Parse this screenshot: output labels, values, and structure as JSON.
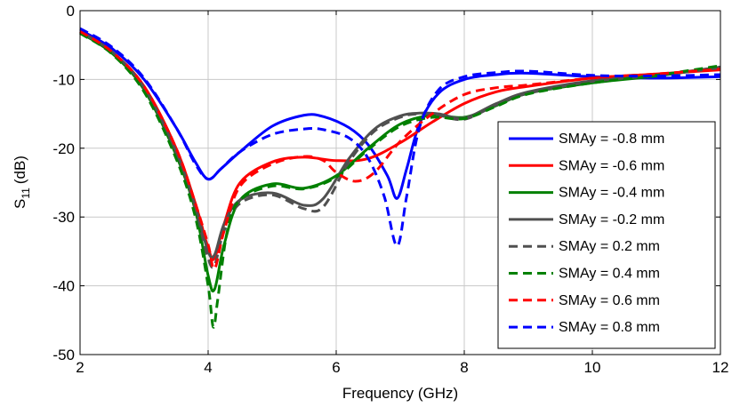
{
  "chart_data": {
    "type": "line",
    "title": "",
    "xlabel": "Frequency (GHz)",
    "ylabel_main": "S",
    "ylabel_sub": "11",
    "ylabel_unit": "(dB)",
    "xlim": [
      2,
      12
    ],
    "ylim": [
      -50,
      0
    ],
    "xticks": [
      2,
      4,
      6,
      8,
      10,
      12
    ],
    "yticks": [
      0,
      -10,
      -20,
      -30,
      -40,
      -50
    ],
    "grid": true,
    "legend_position": "right",
    "series": [
      {
        "name": "SMAy = -0.8 mm",
        "color": "#0000ff",
        "dash": "solid",
        "x": [
          2,
          2.5,
          3,
          3.5,
          3.8,
          4,
          4.2,
          4.5,
          5,
          5.5,
          5.8,
          6.2,
          6.5,
          6.8,
          6.95,
          7.1,
          7.3,
          7.6,
          8,
          8.5,
          9,
          10,
          11,
          12
        ],
        "y": [
          -2.8,
          -5.5,
          -10,
          -17,
          -22,
          -24.5,
          -23,
          -20.5,
          -16.8,
          -15.2,
          -15.4,
          -17,
          -19.5,
          -24,
          -27.3,
          -23,
          -16.5,
          -12,
          -10,
          -9.3,
          -9.1,
          -9.6,
          -9.8,
          -9.6
        ]
      },
      {
        "name": "SMAy = -0.6 mm",
        "color": "#ff0000",
        "dash": "solid",
        "x": [
          2,
          2.5,
          3,
          3.5,
          3.8,
          4,
          4.1,
          4.25,
          4.5,
          5,
          5.5,
          6,
          6.5,
          7,
          7.5,
          8,
          8.5,
          9,
          10,
          11,
          12
        ],
        "y": [
          -3,
          -6,
          -11,
          -20,
          -28,
          -34.5,
          -36,
          -31,
          -25,
          -22,
          -21.3,
          -21.8,
          -21.5,
          -19.2,
          -16.2,
          -13.5,
          -11.8,
          -11,
          -9.8,
          -9.2,
          -8.6
        ]
      },
      {
        "name": "SMAy = -0.4 mm",
        "color": "#008000",
        "dash": "solid",
        "x": [
          2,
          2.5,
          3,
          3.5,
          3.8,
          4,
          4.1,
          4.25,
          4.5,
          5,
          5.5,
          6,
          6.5,
          7,
          7.5,
          8,
          8.5,
          9,
          10,
          11,
          12
        ],
        "y": [
          -3.2,
          -6.2,
          -11.5,
          -21,
          -29,
          -38.5,
          -40.5,
          -34,
          -27.5,
          -25.2,
          -25.8,
          -24,
          -20,
          -16.5,
          -15.2,
          -15.5,
          -13.8,
          -12,
          -10.5,
          -9.5,
          -8.2
        ]
      },
      {
        "name": "SMAy = -0.2 mm",
        "color": "#505050",
        "dash": "solid",
        "x": [
          2,
          2.5,
          3,
          3.5,
          3.8,
          4,
          4.1,
          4.25,
          4.5,
          5,
          5.5,
          5.8,
          6.2,
          6.6,
          7,
          7.3,
          7.6,
          8,
          8.5,
          9,
          10,
          11,
          12
        ],
        "y": [
          -3.1,
          -6,
          -11.2,
          -20.5,
          -28.5,
          -35,
          -35.5,
          -31,
          -27.5,
          -26.5,
          -28.3,
          -27.3,
          -21.5,
          -17.2,
          -15.3,
          -14.9,
          -15,
          -15.6,
          -13.5,
          -11.8,
          -10.2,
          -9.4,
          -8.3
        ]
      },
      {
        "name": "SMAy = 0.2 mm",
        "color": "#505050",
        "dash": "dashed",
        "x": [
          2,
          2.5,
          3,
          3.5,
          3.8,
          4,
          4.1,
          4.25,
          4.5,
          5,
          5.5,
          5.8,
          6.2,
          6.6,
          7,
          7.3,
          7.6,
          8,
          8.5,
          9,
          10,
          11,
          12
        ],
        "y": [
          -3.1,
          -6,
          -11.3,
          -20.8,
          -29,
          -36,
          -37,
          -32,
          -28,
          -26.8,
          -28.8,
          -28.5,
          -22,
          -17.5,
          -15.5,
          -15,
          -15.2,
          -15.8,
          -13.7,
          -12,
          -10.3,
          -9.4,
          -8.2
        ]
      },
      {
        "name": "SMAy = 0.4 mm",
        "color": "#008000",
        "dash": "dashed",
        "x": [
          2,
          2.5,
          3,
          3.5,
          3.8,
          4,
          4.08,
          4.15,
          4.3,
          4.5,
          5,
          5.5,
          6,
          6.5,
          7,
          7.5,
          8,
          8.5,
          9,
          10,
          11,
          12
        ],
        "y": [
          -3.3,
          -6.3,
          -11.8,
          -21.5,
          -30,
          -40,
          -46,
          -42,
          -32,
          -27.5,
          -25.5,
          -25.9,
          -24.2,
          -20.2,
          -16.8,
          -15.5,
          -15.7,
          -13.9,
          -12.1,
          -10.5,
          -9.4,
          -8
        ]
      },
      {
        "name": "SMAy = 0.6 mm",
        "color": "#ff0000",
        "dash": "dashed",
        "x": [
          2,
          2.5,
          3,
          3.5,
          3.8,
          4,
          4.1,
          4.25,
          4.5,
          5,
          5.5,
          5.8,
          6,
          6.3,
          6.6,
          7,
          7.5,
          8,
          8.5,
          9,
          10,
          11,
          12
        ],
        "y": [
          -3,
          -6,
          -11,
          -20,
          -28,
          -34,
          -37.5,
          -32,
          -25.5,
          -22.3,
          -21.2,
          -21.8,
          -23.5,
          -24.8,
          -23.5,
          -19,
          -15,
          -12.2,
          -11.2,
          -10.8,
          -9.8,
          -9.2,
          -8.5
        ]
      },
      {
        "name": "SMAy = 0.8 mm",
        "color": "#0000ff",
        "dash": "dashed",
        "x": [
          2,
          2.5,
          3,
          3.5,
          3.8,
          4,
          4.2,
          4.5,
          5,
          5.5,
          5.8,
          6.2,
          6.5,
          6.75,
          6.95,
          7.1,
          7.3,
          7.6,
          8,
          8.5,
          9,
          10,
          11,
          12
        ],
        "y": [
          -2.6,
          -5.3,
          -9.8,
          -17,
          -22.3,
          -24.5,
          -23,
          -20.5,
          -18,
          -17.2,
          -17.3,
          -18.5,
          -21.5,
          -27,
          -34.2,
          -27,
          -17,
          -11.5,
          -9.6,
          -9,
          -8.8,
          -9.4,
          -9.5,
          -9.3
        ]
      }
    ]
  }
}
